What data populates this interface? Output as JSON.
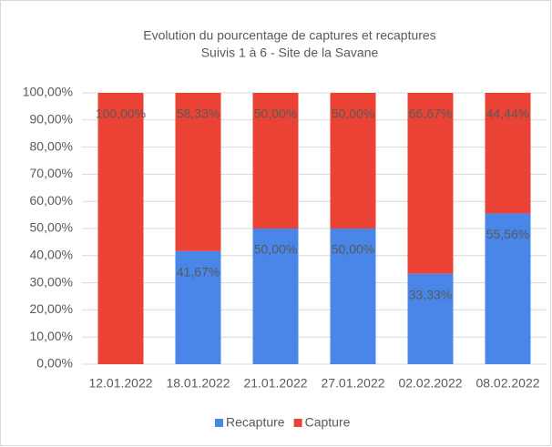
{
  "chart_data": {
    "type": "stacked_bar",
    "title": "Evolution du pourcentage de captures et recaptures",
    "subtitle": "Suivis 1 à 6 - Site de la Savane",
    "categories": [
      "12.01.2022",
      "18.01.2022",
      "21.01.2022",
      "27.01.2022",
      "02.02.2022",
      "08.02.2022"
    ],
    "series": [
      {
        "name": "Recapture",
        "color": "#4a86e8",
        "values": [
          0,
          41.67,
          50,
          50,
          33.33,
          55.56
        ],
        "value_labels": [
          null,
          "41,67%",
          "50,00%",
          "50,00%",
          "33,33%",
          "55,56%"
        ]
      },
      {
        "name": "Capture",
        "color": "#ea4335",
        "values": [
          100,
          58.33,
          50,
          50,
          66.67,
          44.44
        ],
        "value_labels": [
          "100,00%",
          "58,33%",
          "50,00%",
          "50,00%",
          "66,67%",
          "44,44%"
        ]
      }
    ],
    "ylim": [
      0,
      100
    ],
    "yticks": [
      {
        "value": 0,
        "label": "0,00%"
      },
      {
        "value": 10,
        "label": "10,00%"
      },
      {
        "value": 20,
        "label": "20,00%"
      },
      {
        "value": 30,
        "label": "30,00%"
      },
      {
        "value": 40,
        "label": "40,00%"
      },
      {
        "value": 50,
        "label": "50,00%"
      },
      {
        "value": 60,
        "label": "60,00%"
      },
      {
        "value": 70,
        "label": "70,00%"
      },
      {
        "value": 80,
        "label": "80,00%"
      },
      {
        "value": 90,
        "label": "90,00%"
      },
      {
        "value": 100,
        "label": "100,00%"
      }
    ],
    "grid": true,
    "legend": "bottom"
  }
}
